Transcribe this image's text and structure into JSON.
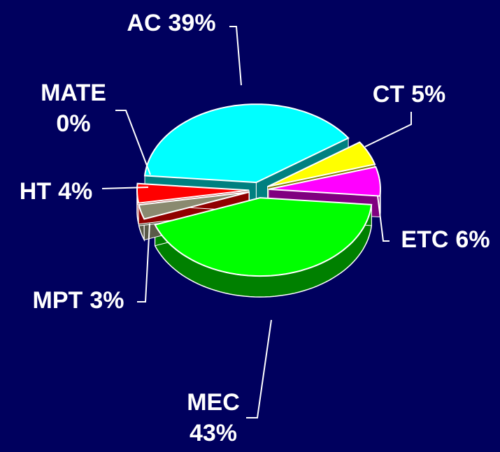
{
  "chart_data": {
    "type": "pie",
    "categories": [
      "AC",
      "CT",
      "ETC",
      "MEC",
      "MPT",
      "MATE",
      "HT"
    ],
    "values": [
      39,
      5,
      6,
      43,
      3,
      0,
      4
    ],
    "value_labels": [
      "39%",
      "5%",
      "6%",
      "43%",
      "3%",
      "0%",
      "4%"
    ],
    "colors": [
      "#00ffff",
      "#ffff00",
      "#ff00ff",
      "#00ff00",
      "#8a8a70",
      "#ffffcc",
      "#ff0000"
    ],
    "side_colors": [
      "#008080",
      "#808000",
      "#800080",
      "#008000",
      "#5a5a48",
      "#b0b090",
      "#900000"
    ]
  }
}
